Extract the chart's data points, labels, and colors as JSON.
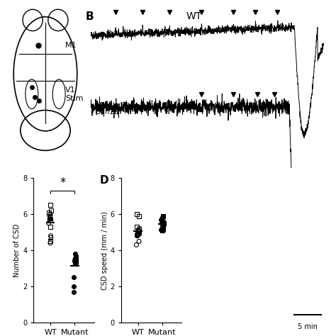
{
  "panel_C": {
    "WT_open_squares": [
      6.5,
      6.2,
      6.1,
      5.9,
      5.85,
      5.8,
      5.75,
      5.7,
      5.3,
      4.7,
      4.5
    ],
    "WT_open_circles": [
      6.0,
      5.5,
      4.8,
      4.4
    ],
    "Mutant_filled_circles": [
      3.8,
      3.5,
      3.45,
      3.4,
      3.35,
      3.3,
      2.5,
      2.0,
      1.7
    ],
    "Mutant_filled_squares": [
      3.6,
      3.5,
      3.4,
      3.3
    ],
    "ylabel": "Number of CSD",
    "ylim": [
      0,
      8
    ],
    "yticks": [
      0,
      2,
      4,
      6,
      8
    ],
    "xlabels": [
      "WT",
      "Mutant"
    ]
  },
  "panel_D": {
    "WT_open_squares": [
      6.0,
      5.9,
      5.3,
      5.2,
      5.1,
      5.05,
      5.0,
      4.95,
      4.9,
      4.85
    ],
    "WT_open_circles": [
      5.2,
      4.8,
      4.5,
      4.3
    ],
    "Mutant_filled_circles": [
      5.7,
      5.6,
      5.5,
      5.45,
      5.4,
      5.3,
      5.2,
      5.15
    ],
    "Mutant_filled_squares": [
      5.9,
      5.5,
      5.2,
      5.1
    ],
    "Mutant_filled_triangles": [
      5.8
    ],
    "ylabel": "CSD speed (mm / min)",
    "ylim": [
      0,
      8
    ],
    "yticks": [
      0,
      2,
      4,
      6,
      8
    ],
    "xlabels": [
      "WT",
      "Mutant"
    ]
  },
  "background_color": "#ffffff"
}
